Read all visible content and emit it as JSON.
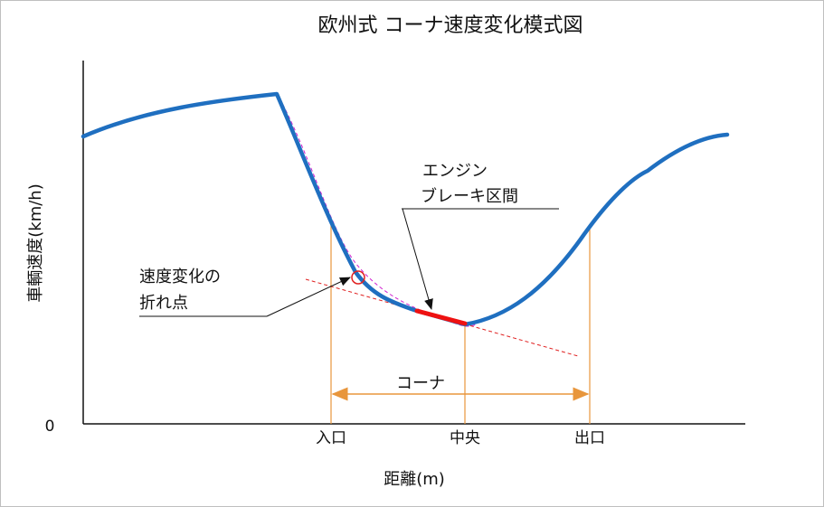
{
  "title": "欧州式 コーナ速度変化模式図",
  "axes": {
    "y_label": "車輌速度(km/h)",
    "y_zero_label": "0",
    "x_label": "距離(m)",
    "x_ticks": [
      "入口",
      "中央",
      "出口"
    ]
  },
  "annotations": {
    "engine_brake_line1": "エンジン",
    "engine_brake_line2": "ブレーキ区間",
    "inflection_line1": "速度変化の",
    "inflection_line2": "折れ点",
    "corner_label": "コーナ"
  },
  "colors": {
    "speed_curve": "#1f6fc0",
    "engine_brake_segment": "#ee1111",
    "tangent_dashed": "#e02020",
    "reference_dashed": "#d020d0",
    "guide_lines": "#e8963c",
    "axis": "#111111"
  }
}
